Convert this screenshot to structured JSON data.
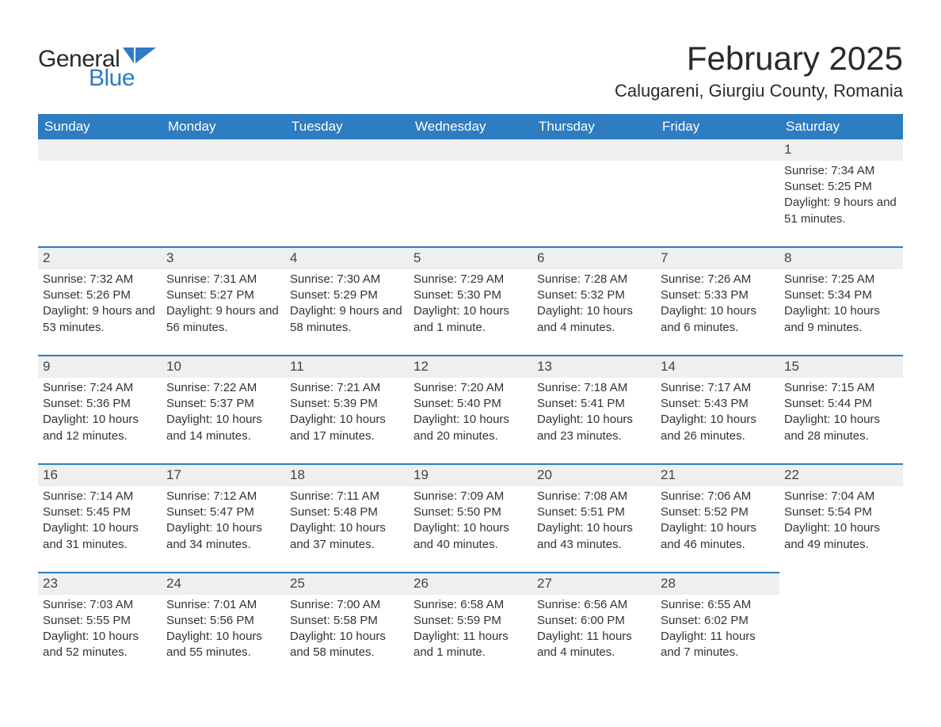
{
  "logo": {
    "part1": "General",
    "part2": "Blue",
    "shape_color": "#2e7cc1"
  },
  "title": "February 2025",
  "location": "Calugareni, Giurgiu County, Romania",
  "header_bg": "#2e7cc1",
  "header_fg": "#ffffff",
  "daynum_bg": "#efefef",
  "border_color": "#2e7cc1",
  "weekdays": [
    "Sunday",
    "Monday",
    "Tuesday",
    "Wednesday",
    "Thursday",
    "Friday",
    "Saturday"
  ],
  "weeks": [
    [
      null,
      null,
      null,
      null,
      null,
      null,
      {
        "n": "1",
        "sunrise": "7:34 AM",
        "sunset": "5:25 PM",
        "daylight": "9 hours and 51 minutes."
      }
    ],
    [
      {
        "n": "2",
        "sunrise": "7:32 AM",
        "sunset": "5:26 PM",
        "daylight": "9 hours and 53 minutes."
      },
      {
        "n": "3",
        "sunrise": "7:31 AM",
        "sunset": "5:27 PM",
        "daylight": "9 hours and 56 minutes."
      },
      {
        "n": "4",
        "sunrise": "7:30 AM",
        "sunset": "5:29 PM",
        "daylight": "9 hours and 58 minutes."
      },
      {
        "n": "5",
        "sunrise": "7:29 AM",
        "sunset": "5:30 PM",
        "daylight": "10 hours and 1 minute."
      },
      {
        "n": "6",
        "sunrise": "7:28 AM",
        "sunset": "5:32 PM",
        "daylight": "10 hours and 4 minutes."
      },
      {
        "n": "7",
        "sunrise": "7:26 AM",
        "sunset": "5:33 PM",
        "daylight": "10 hours and 6 minutes."
      },
      {
        "n": "8",
        "sunrise": "7:25 AM",
        "sunset": "5:34 PM",
        "daylight": "10 hours and 9 minutes."
      }
    ],
    [
      {
        "n": "9",
        "sunrise": "7:24 AM",
        "sunset": "5:36 PM",
        "daylight": "10 hours and 12 minutes."
      },
      {
        "n": "10",
        "sunrise": "7:22 AM",
        "sunset": "5:37 PM",
        "daylight": "10 hours and 14 minutes."
      },
      {
        "n": "11",
        "sunrise": "7:21 AM",
        "sunset": "5:39 PM",
        "daylight": "10 hours and 17 minutes."
      },
      {
        "n": "12",
        "sunrise": "7:20 AM",
        "sunset": "5:40 PM",
        "daylight": "10 hours and 20 minutes."
      },
      {
        "n": "13",
        "sunrise": "7:18 AM",
        "sunset": "5:41 PM",
        "daylight": "10 hours and 23 minutes."
      },
      {
        "n": "14",
        "sunrise": "7:17 AM",
        "sunset": "5:43 PM",
        "daylight": "10 hours and 26 minutes."
      },
      {
        "n": "15",
        "sunrise": "7:15 AM",
        "sunset": "5:44 PM",
        "daylight": "10 hours and 28 minutes."
      }
    ],
    [
      {
        "n": "16",
        "sunrise": "7:14 AM",
        "sunset": "5:45 PM",
        "daylight": "10 hours and 31 minutes."
      },
      {
        "n": "17",
        "sunrise": "7:12 AM",
        "sunset": "5:47 PM",
        "daylight": "10 hours and 34 minutes."
      },
      {
        "n": "18",
        "sunrise": "7:11 AM",
        "sunset": "5:48 PM",
        "daylight": "10 hours and 37 minutes."
      },
      {
        "n": "19",
        "sunrise": "7:09 AM",
        "sunset": "5:50 PM",
        "daylight": "10 hours and 40 minutes."
      },
      {
        "n": "20",
        "sunrise": "7:08 AM",
        "sunset": "5:51 PM",
        "daylight": "10 hours and 43 minutes."
      },
      {
        "n": "21",
        "sunrise": "7:06 AM",
        "sunset": "5:52 PM",
        "daylight": "10 hours and 46 minutes."
      },
      {
        "n": "22",
        "sunrise": "7:04 AM",
        "sunset": "5:54 PM",
        "daylight": "10 hours and 49 minutes."
      }
    ],
    [
      {
        "n": "23",
        "sunrise": "7:03 AM",
        "sunset": "5:55 PM",
        "daylight": "10 hours and 52 minutes."
      },
      {
        "n": "24",
        "sunrise": "7:01 AM",
        "sunset": "5:56 PM",
        "daylight": "10 hours and 55 minutes."
      },
      {
        "n": "25",
        "sunrise": "7:00 AM",
        "sunset": "5:58 PM",
        "daylight": "10 hours and 58 minutes."
      },
      {
        "n": "26",
        "sunrise": "6:58 AM",
        "sunset": "5:59 PM",
        "daylight": "11 hours and 1 minute."
      },
      {
        "n": "27",
        "sunrise": "6:56 AM",
        "sunset": "6:00 PM",
        "daylight": "11 hours and 4 minutes."
      },
      {
        "n": "28",
        "sunrise": "6:55 AM",
        "sunset": "6:02 PM",
        "daylight": "11 hours and 7 minutes."
      },
      null
    ]
  ],
  "labels": {
    "sunrise": "Sunrise: ",
    "sunset": "Sunset: ",
    "daylight": "Daylight: "
  }
}
